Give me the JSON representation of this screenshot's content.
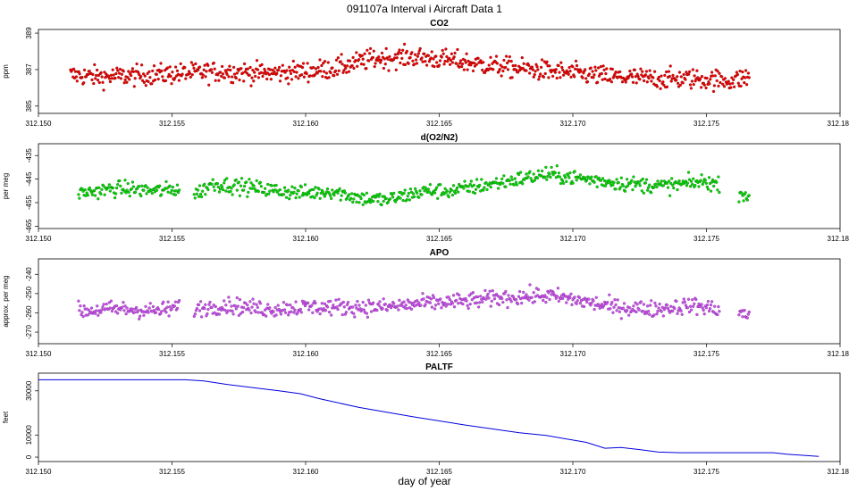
{
  "figure_title": "091107a   Interval i Aircraft Data 1",
  "xlabel": "day of year",
  "chart_data": [
    {
      "type": "scatter",
      "title": "CO2",
      "ylabel": "ppm",
      "color": "#ee0000",
      "xlim": [
        312.15,
        312.18
      ],
      "ylim": [
        384.6,
        389.2
      ],
      "xticks": [
        "312.150",
        "312.155",
        "312.160",
        "312.165",
        "312.170",
        "312.175",
        "312.180"
      ],
      "yticks": [
        385,
        387,
        389
      ],
      "ytick_labels": [
        "385",
        "387",
        "389"
      ],
      "series": [
        {
          "x": [
            312.1512,
            312.1525,
            312.154,
            312.1555,
            312.157,
            312.1585,
            312.16,
            312.1612,
            312.1625,
            312.164,
            312.1655,
            312.167,
            312.1685,
            312.17,
            312.1715,
            312.173,
            312.1745,
            312.176,
            312.1766
          ],
          "y": [
            386.7,
            386.6,
            386.7,
            386.8,
            386.9,
            386.8,
            386.9,
            387.1,
            387.6,
            387.7,
            387.5,
            387.2,
            387.0,
            386.8,
            386.6,
            386.5,
            386.5,
            386.4,
            386.6
          ]
        }
      ]
    },
    {
      "type": "scatter",
      "title": "d(O2/N2)",
      "ylabel": "per meg",
      "color": "#00dd00",
      "xlim": [
        312.15,
        312.18
      ],
      "ylim": [
        -466,
        -430
      ],
      "xticks": [
        "312.150",
        "312.155",
        "312.160",
        "312.165",
        "312.170",
        "312.175",
        "312.180"
      ],
      "yticks": [
        -465,
        -455,
        -445,
        -435
      ],
      "ytick_labels": [
        "-465",
        "-455",
        "-445",
        "-435"
      ],
      "series": [
        {
          "x": [
            312.1515,
            312.153,
            312.1545,
            312.1553,
            312.1558,
            312.1565,
            312.1575,
            312.159,
            312.16,
            312.161,
            312.162,
            312.163,
            312.1645,
            312.1655,
            312.167,
            312.168,
            312.169,
            312.1705,
            312.172,
            312.1735,
            312.175,
            312.1766
          ],
          "y": [
            -451,
            -449,
            -450,
            -449,
            -452,
            -447,
            -448,
            -450,
            -451,
            -450,
            -453,
            -454,
            -450,
            -450,
            -447,
            -445,
            -443,
            -445,
            -447,
            -448,
            -446,
            -452
          ]
        }
      ]
    },
    {
      "type": "scatter",
      "title": "APO",
      "ylabel": "approx. per meg",
      "color": "#cc55ee",
      "xlim": [
        312.15,
        312.18
      ],
      "ylim": [
        -276,
        -232
      ],
      "xticks": [
        "312.150",
        "312.155",
        "312.160",
        "312.165",
        "312.170",
        "312.175",
        "312.180"
      ],
      "yticks": [
        -270,
        -260,
        -250,
        -240
      ],
      "ytick_labels": [
        "-270",
        "-260",
        "-250",
        "-240"
      ],
      "series": [
        {
          "x": [
            312.1515,
            312.153,
            312.1545,
            312.1553,
            312.1558,
            312.157,
            312.1585,
            312.16,
            312.1615,
            312.163,
            312.1645,
            312.166,
            312.1675,
            312.169,
            312.17,
            312.1715,
            312.173,
            312.1745,
            312.1766
          ],
          "y": [
            -259,
            -258,
            -259,
            -257,
            -258,
            -256,
            -258,
            -257,
            -257,
            -257,
            -255,
            -254,
            -252,
            -251,
            -253,
            -257,
            -258,
            -256,
            -261
          ]
        }
      ]
    },
    {
      "type": "line",
      "title": "PALTF",
      "ylabel": "feet",
      "color": "#0000dd",
      "xlim": [
        312.15,
        312.18
      ],
      "ylim": [
        -2000,
        38000
      ],
      "xticks": [
        "312.150",
        "312.155",
        "312.160",
        "312.165",
        "312.170",
        "312.175",
        "312.180"
      ],
      "yticks": [
        0,
        10000,
        30000
      ],
      "ytick_labels": [
        "0",
        "10000",
        "30000"
      ],
      "series": [
        {
          "x": [
            312.15,
            312.152,
            312.154,
            312.1555,
            312.1562,
            312.157,
            312.158,
            312.159,
            312.1598,
            312.1605,
            312.162,
            312.164,
            312.166,
            312.168,
            312.169,
            312.1705,
            312.1712,
            312.1718,
            312.1725,
            312.1732,
            312.174,
            312.175,
            312.176,
            312.177,
            312.1775,
            312.178,
            312.1792
          ],
          "y": [
            35000,
            35000,
            35000,
            35000,
            34500,
            33000,
            31500,
            30000,
            28700,
            26500,
            22500,
            18300,
            14500,
            11000,
            9800,
            6700,
            4000,
            4400,
            3400,
            2300,
            2000,
            2000,
            2000,
            2000,
            2000,
            1300,
            300
          ]
        }
      ]
    }
  ]
}
